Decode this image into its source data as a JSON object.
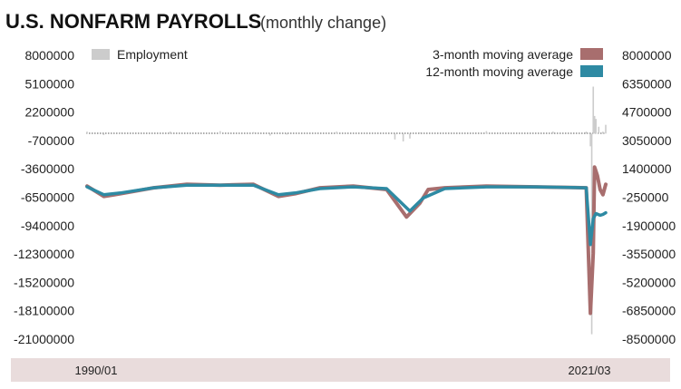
{
  "chart_data": {
    "type": "line",
    "title": "U.S. NONFARM PAYROLLS",
    "subtitle": "(monthly change)",
    "x_range": [
      "1990/01",
      "2021/03"
    ],
    "x_labels": [
      "1990/01",
      "2021/03"
    ],
    "left_axis": {
      "ticks": [
        8000000,
        5100000,
        2200000,
        -700000,
        -3600000,
        -6500000,
        -9400000,
        -12300000,
        -15200000,
        -18100000,
        -21000000
      ],
      "tick_labels": [
        "8000000",
        "5100000",
        "2200000",
        "-700000",
        "-3600000",
        "-6500000",
        "-9400000",
        "-12300000",
        "-15200000",
        "-18100000",
        "-21000000"
      ],
      "range": [
        -21000000,
        8000000
      ]
    },
    "right_axis": {
      "ticks": [
        8000000,
        6350000,
        4700000,
        3050000,
        1400000,
        -250000,
        -1900000,
        -3550000,
        -5200000,
        -6850000,
        -8500000
      ],
      "tick_labels": [
        "8000000",
        "6350000",
        "4700000",
        "3050000",
        "1400000",
        "-250000",
        "-1900000",
        "-3550000",
        "-5200000",
        "-6850000",
        "-8500000"
      ],
      "range": [
        -8500000,
        8000000
      ]
    },
    "legend": {
      "left": [
        {
          "name": "Employment",
          "color": "#cccccc"
        }
      ],
      "right": [
        {
          "name": "3-month moving average",
          "color": "#a86e6e"
        },
        {
          "name": "12-month moving average",
          "color": "#2e8aa3"
        }
      ]
    },
    "series": [
      {
        "name": "Employment",
        "axis": "left",
        "kind": "bar",
        "color": "#cccccc",
        "x": [
          1990.0,
          1991.0,
          1992.0,
          1995.0,
          1998.0,
          2000.0,
          2001.0,
          2002.0,
          2005.0,
          2008.5,
          2009.0,
          2009.4,
          2010.0,
          2014.0,
          2018.0,
          2020.0,
          2020.25,
          2020.33,
          2020.42,
          2020.5,
          2020.58,
          2020.75,
          2021.0,
          2021.17
        ],
        "values": [
          200000,
          -150000,
          100000,
          200000,
          250000,
          150000,
          -200000,
          -100000,
          200000,
          -600000,
          -800000,
          -500000,
          100000,
          250000,
          200000,
          200000,
          -1300000,
          -20500000,
          4800000,
          1800000,
          1500000,
          700000,
          200000,
          900000
        ]
      },
      {
        "name": "3-month moving average",
        "axis": "right",
        "kind": "line",
        "color": "#a86e6e",
        "x": [
          1990.0,
          1991.0,
          1992.0,
          1994.0,
          1996.0,
          1998.0,
          2000.0,
          2001.5,
          2002.5,
          2004.0,
          2006.0,
          2008.0,
          2009.2,
          2010.0,
          2010.5,
          2011.5,
          2014.0,
          2017.0,
          2020.0,
          2020.25,
          2020.42,
          2020.5,
          2020.67,
          2020.83,
          2021.0,
          2021.17
        ],
        "values": [
          400000,
          -200000,
          -50000,
          300000,
          500000,
          450000,
          500000,
          -200000,
          -50000,
          300000,
          400000,
          200000,
          -1400000,
          -600000,
          200000,
          300000,
          400000,
          350000,
          300000,
          -7000000,
          -3500000,
          1500000,
          1000000,
          200000,
          -100000,
          500000
        ]
      },
      {
        "name": "12-month moving average",
        "axis": "right",
        "kind": "line",
        "color": "#2e8aa3",
        "x": [
          1990.0,
          1991.0,
          1992.0,
          1994.0,
          1996.0,
          1998.0,
          2000.0,
          2001.5,
          2002.5,
          2004.0,
          2006.0,
          2008.0,
          2009.4,
          2010.2,
          2011.5,
          2014.0,
          2017.0,
          2020.0,
          2020.25,
          2020.42,
          2020.58,
          2020.83,
          2021.0,
          2021.17
        ],
        "values": [
          350000,
          -100000,
          0,
          300000,
          450000,
          450000,
          450000,
          -100000,
          0,
          250000,
          350000,
          250000,
          -1050000,
          -300000,
          250000,
          350000,
          350000,
          300000,
          -3000000,
          -1500000,
          -1200000,
          -1300000,
          -1250000,
          -1150000
        ]
      }
    ],
    "grid": false
  }
}
